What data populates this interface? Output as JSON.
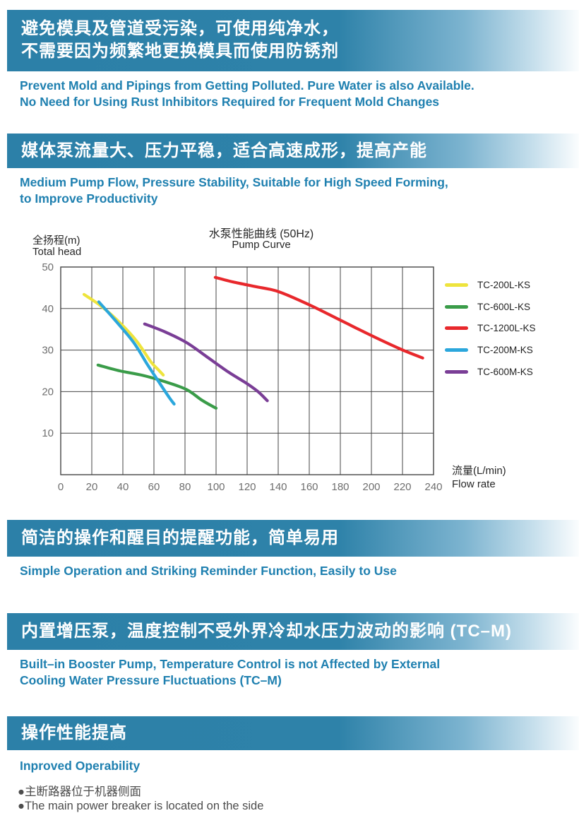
{
  "banners": {
    "b1_line1": "避免模具及管道受污染，可使用纯净水，",
    "b1_line2": "不需要因为频繁地更换模具而使用防锈剂",
    "b2": "媒体泵流量大、压力平稳，适合高速成形，提高产能",
    "b3": "简洁的操作和醒目的提醒功能，简单易用",
    "b4": "内置增压泵，温度控制不受外界冷却水压力波动的影响 (TC–M)",
    "b5": "操作性能提高"
  },
  "headings": {
    "h1_line1": "Prevent Mold and Pipings from Getting Polluted. Pure Water is also Available.",
    "h1_line2": "No Need for Using Rust Inhibitors Required for Frequent Mold Changes",
    "h2_line1": "Medium Pump Flow, Pressure Stability, Suitable for High Speed Forming,",
    "h2_line2": "to Improve Productivity",
    "h3": "Simple Operation and Striking Reminder Function, Easily to Use",
    "h4_line1": "Built–in Booster Pump, Temperature Control is not Affected by External",
    "h4_line2": "Cooling Water Pressure Fluctuations (TC–M)",
    "h5": "Inproved Operability"
  },
  "bullets": {
    "zh": "●主断路器位于机器侧面",
    "en": "●The main power breaker is located on the side"
  },
  "colors": {
    "banner_blue": "#2c80a8",
    "heading_blue": "#1f80b0",
    "bullet_text": "#4d4d4d"
  },
  "chart_data": {
    "type": "line",
    "title_zh": "水泵性能曲线 (50Hz)",
    "title_en": "Pump Curve",
    "ylabel_zh": "全扬程(m)",
    "ylabel_en": "Total head",
    "xlabel_zh": "流量(L/min)",
    "xlabel_en": "Flow rate",
    "xlim": [
      0,
      240
    ],
    "ylim": [
      0,
      50
    ],
    "xticks": [
      0,
      20,
      40,
      60,
      80,
      100,
      120,
      140,
      160,
      180,
      200,
      220,
      240
    ],
    "yticks": [
      10,
      20,
      30,
      40,
      50
    ],
    "grid": true,
    "grid_color": "#454545",
    "tick_color": "#6f6f6f",
    "legend_position": "right",
    "series": [
      {
        "name": "TC-200L-KS",
        "color": "#eee43d",
        "points": [
          [
            15,
            43.4
          ],
          [
            26,
            40.6
          ],
          [
            38,
            36.6
          ],
          [
            49,
            32.1
          ],
          [
            58,
            27.2
          ],
          [
            63,
            25.2
          ],
          [
            66,
            24
          ]
        ]
      },
      {
        "name": "TC-600L-KS",
        "color": "#3a9c49",
        "points": [
          [
            24,
            26.4
          ],
          [
            38,
            25.0
          ],
          [
            53,
            23.9
          ],
          [
            67,
            22.4
          ],
          [
            81,
            20.5
          ],
          [
            91,
            17.9
          ],
          [
            100,
            16
          ]
        ]
      },
      {
        "name": "TC-1200L-KS",
        "color": "#e8282c",
        "points": [
          [
            99.5,
            47.5
          ],
          [
            111,
            46.4
          ],
          [
            125,
            45.3
          ],
          [
            140,
            44.1
          ],
          [
            160,
            40.9
          ],
          [
            180,
            37.2
          ],
          [
            200,
            33.5
          ],
          [
            219,
            30.2
          ],
          [
            233,
            28.1
          ]
        ]
      },
      {
        "name": "TC-200M-KS",
        "color": "#2ba7dc",
        "points": [
          [
            24.5,
            41.6
          ],
          [
            35,
            37.2
          ],
          [
            47,
            31.8
          ],
          [
            56,
            26.4
          ],
          [
            65,
            21.3
          ],
          [
            70,
            18.5
          ],
          [
            73,
            17
          ]
        ]
      },
      {
        "name": "TC-600M-KS",
        "color": "#7a3e96",
        "points": [
          [
            54,
            36.3
          ],
          [
            67,
            34.4
          ],
          [
            81,
            31.8
          ],
          [
            94,
            28.4
          ],
          [
            108,
            24.7
          ],
          [
            120,
            21.9
          ],
          [
            127,
            20.0
          ],
          [
            133,
            17.8
          ]
        ]
      }
    ]
  }
}
